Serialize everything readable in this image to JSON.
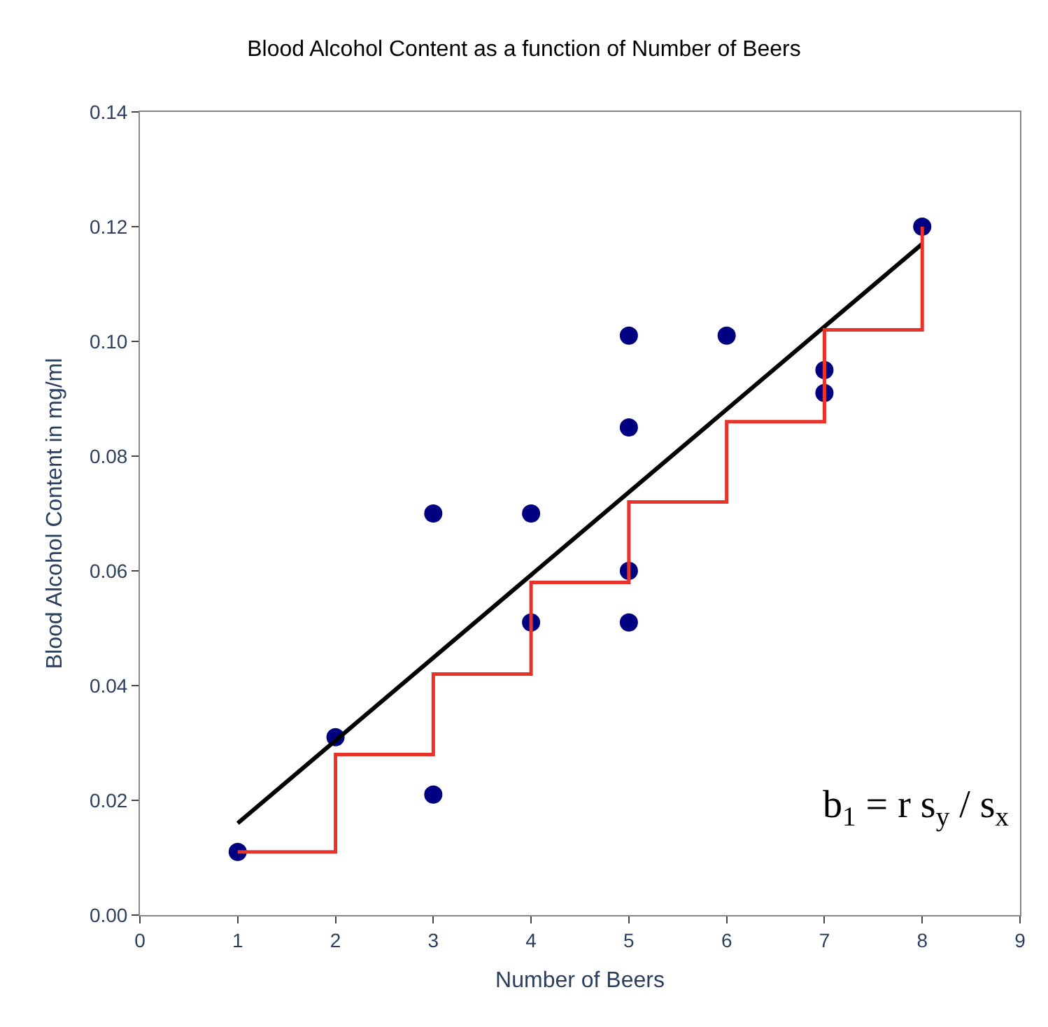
{
  "chart_data": {
    "type": "scatter",
    "title": "Blood Alcohol Content as a function of Number of Beers",
    "xlabel": "Number of Beers",
    "ylabel": "Blood Alcohol Content in mg/ml",
    "xlim": [
      0,
      9
    ],
    "xticks": [
      0,
      1,
      2,
      3,
      4,
      5,
      6,
      7,
      8,
      9
    ],
    "ylim": [
      0,
      0.14
    ],
    "yticks": [
      {
        "value": 0,
        "label": "0.00"
      },
      {
        "value": 0.02,
        "label": "0.02"
      },
      {
        "value": 0.04,
        "label": "0.04"
      },
      {
        "value": 0.06,
        "label": "0.06"
      },
      {
        "value": 0.08,
        "label": "0.08"
      },
      {
        "value": 0.1,
        "label": "0.10"
      },
      {
        "value": 0.12,
        "label": "0.12"
      },
      {
        "value": 0.14,
        "label": "0.14"
      }
    ],
    "marker": "circle",
    "series": [
      {
        "color": "#000080",
        "x": [
          1,
          2,
          3,
          3,
          4,
          4,
          5,
          5,
          5,
          5,
          6,
          7,
          7,
          8
        ],
        "values": [
          0.011,
          0.031,
          0.07,
          0.021,
          0.07,
          0.051,
          0.101,
          0.085,
          0.06,
          0.051,
          0.101,
          0.095,
          0.091,
          0.12
        ]
      },
      {
        "type": "line",
        "marker": "none",
        "color": "#000000",
        "x": [
          1,
          8
        ],
        "values": [
          0.016,
          0.117
        ]
      },
      {
        "type": "step",
        "marker": "none",
        "color": "#e8322a",
        "x": [
          1,
          2,
          2,
          3,
          3,
          4,
          4,
          5,
          5,
          6,
          6,
          7,
          7,
          8,
          8
        ],
        "values": [
          0.011,
          0.011,
          0.028,
          0.028,
          0.042,
          0.042,
          0.058,
          0.058,
          0.072,
          0.072,
          0.086,
          0.086,
          0.102,
          0.102,
          0.12
        ]
      }
    ],
    "annotations": [
      "b$_{1}$ = r s$_{y}$ / s$_{x}$"
    ]
  }
}
